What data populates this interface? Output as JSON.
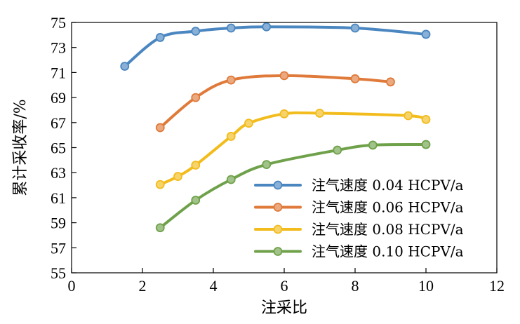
{
  "chart_data": {
    "type": "line",
    "xlabel": "注采比",
    "ylabel": "累计采收率/%",
    "xlim": [
      0,
      12
    ],
    "ylim": [
      55,
      75
    ],
    "xticks": [
      0,
      2,
      4,
      6,
      8,
      10,
      12
    ],
    "yticks": [
      55,
      57,
      59,
      61,
      63,
      65,
      67,
      69,
      71,
      73,
      75
    ],
    "grid": false,
    "legend_position": "lower-right",
    "series": [
      {
        "name": "注气速度 0.04 HCPV/a",
        "color": "#4a86c0",
        "x": [
          1.5,
          2.5,
          3.5,
          4.5,
          5.5,
          8.0,
          10.0
        ],
        "y": [
          71.5,
          73.8,
          74.3,
          74.55,
          74.65,
          74.55,
          74.05
        ]
      },
      {
        "name": "注气速度 0.06 HCPV/a",
        "color": "#e07a3a",
        "x": [
          2.5,
          3.5,
          4.5,
          6.0,
          8.0,
          9.0
        ],
        "y": [
          66.6,
          69.0,
          70.4,
          70.75,
          70.5,
          70.25
        ]
      },
      {
        "name": "注气速度 0.08 HCPV/a",
        "color": "#f2bc1c",
        "x": [
          2.5,
          3.0,
          3.5,
          4.5,
          5.0,
          6.0,
          7.0,
          9.5,
          10.0
        ],
        "y": [
          62.05,
          62.7,
          63.6,
          65.9,
          66.95,
          67.7,
          67.75,
          67.55,
          67.25
        ]
      },
      {
        "name": "注气速度 0.10 HCPV/a",
        "color": "#6fa14a",
        "x": [
          2.5,
          3.5,
          4.5,
          5.5,
          7.5,
          8.5,
          10.0
        ],
        "y": [
          58.6,
          60.8,
          62.45,
          63.65,
          64.8,
          65.2,
          65.25
        ]
      }
    ]
  }
}
